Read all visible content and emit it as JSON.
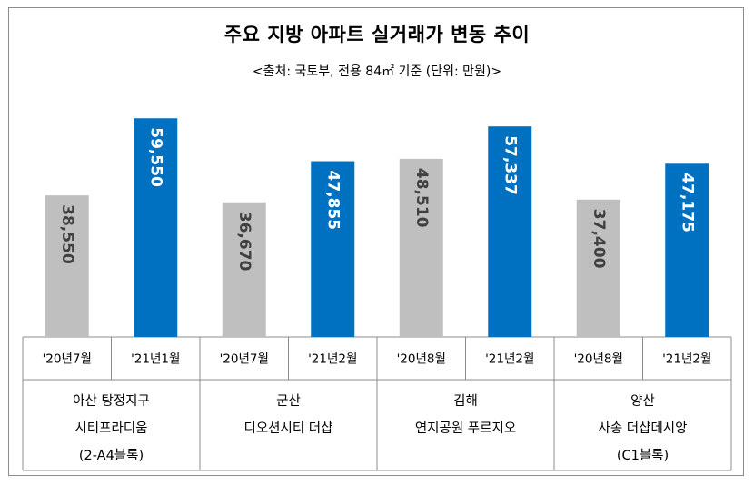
{
  "title": "주요 지방 아파트 실거래가 변동 추이",
  "subtitle": "<출처: 국토부, 전용 84㎡ 기준 (단위: 만원)>",
  "colors": {
    "before": "#bfbfbf",
    "after": "#0070c0",
    "before_text": "#404040",
    "after_text": "#ffffff",
    "grid": "#8c8c8c"
  },
  "chart_data": {
    "type": "bar",
    "title": "주요 지방 아파트 실거래가 변동 추이",
    "subtitle": "<출처: 국토부, 전용 84㎡ 기준 (단위: 만원)>",
    "ylim": [
      0,
      70000
    ],
    "groups": [
      {
        "region": [
          "아산 탕정지구",
          "시티프라디움",
          "(2-A4블록)"
        ],
        "bars": [
          {
            "period": "'20년7월",
            "value": 38550,
            "label": "38,550"
          },
          {
            "period": "'21년1월",
            "value": 59550,
            "label": "59,550"
          }
        ]
      },
      {
        "region": [
          "군산",
          "디오션시티 더샵"
        ],
        "bars": [
          {
            "period": "'20년7월",
            "value": 36670,
            "label": "36,670"
          },
          {
            "period": "'21년2월",
            "value": 47855,
            "label": "47,855"
          }
        ]
      },
      {
        "region": [
          "김해",
          "연지공원 푸르지오"
        ],
        "bars": [
          {
            "period": "'20년8월",
            "value": 48510,
            "label": "48,510"
          },
          {
            "period": "'21년2월",
            "value": 57337,
            "label": "57,337"
          }
        ]
      },
      {
        "region": [
          "양산",
          "사송 더샵데시앙",
          "(C1블록)"
        ],
        "bars": [
          {
            "period": "'20년8월",
            "value": 37400,
            "label": "37,400"
          },
          {
            "period": "'21년2월",
            "value": 47175,
            "label": "47,175"
          }
        ]
      }
    ]
  }
}
